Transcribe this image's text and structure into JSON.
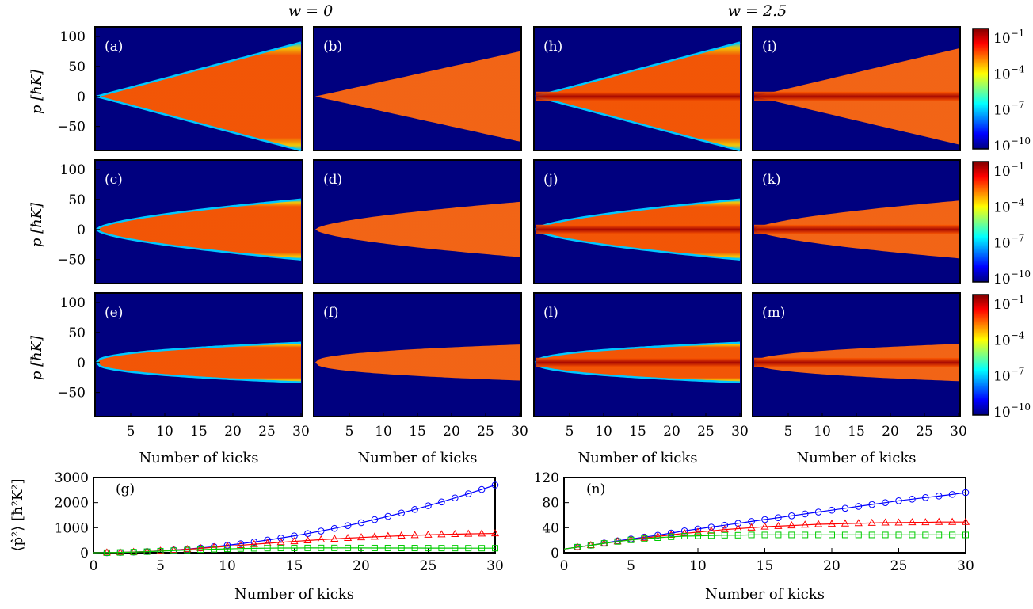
{
  "titles": {
    "left": "w = 0",
    "right": "w = 2.5"
  },
  "heatmap_ylabel": "p [ħK]",
  "heatmap_xlabel": "Number of kicks",
  "heatmap_yticks": [
    "100",
    "50",
    "0",
    "−50"
  ],
  "heatmap_xticks": [
    "5",
    "10",
    "15",
    "20",
    "25",
    "30"
  ],
  "colorbar": {
    "ticks": [
      {
        "base": "10",
        "exp": "−1"
      },
      {
        "base": "10",
        "exp": "−4"
      },
      {
        "base": "10",
        "exp": "−7"
      },
      {
        "base": "10",
        "exp": "−10"
      }
    ],
    "colors": [
      "#00007f",
      "#0000ff",
      "#0080ff",
      "#00ffff",
      "#80ff80",
      "#ffff00",
      "#ff8000",
      "#ff0000",
      "#7f0000"
    ]
  },
  "colors": {
    "background": "#00007f",
    "fringe_outer": "#00c8ff",
    "fringe_mid": "#ffd000",
    "body": "#ff5a00",
    "body_flat": "#ff6a10",
    "center": "#a00000"
  },
  "heatmap_panels": [
    {
      "label": "(a)",
      "row": 0,
      "col": 0,
      "p_edge_at_30": 90,
      "shape": "linear",
      "style": "fringed",
      "center_line": false
    },
    {
      "label": "(b)",
      "row": 0,
      "col": 1,
      "p_edge_at_30": 75,
      "shape": "linear",
      "style": "flat",
      "center_line": false
    },
    {
      "label": "(h)",
      "row": 0,
      "col": 2,
      "p_edge_at_30": 90,
      "shape": "linear",
      "style": "fringed",
      "center_line": true
    },
    {
      "label": "(i)",
      "row": 0,
      "col": 3,
      "p_edge_at_30": 80,
      "shape": "linear",
      "style": "flat",
      "center_line": true
    },
    {
      "label": "(c)",
      "row": 1,
      "col": 0,
      "p_edge_at_30": 50,
      "shape": "sublinear",
      "style": "fringed",
      "center_line": false
    },
    {
      "label": "(d)",
      "row": 1,
      "col": 1,
      "p_edge_at_30": 46,
      "shape": "sublinear",
      "style": "flat",
      "center_line": false
    },
    {
      "label": "(j)",
      "row": 1,
      "col": 2,
      "p_edge_at_30": 50,
      "shape": "sublinear",
      "style": "fringed",
      "center_line": true
    },
    {
      "label": "(k)",
      "row": 1,
      "col": 3,
      "p_edge_at_30": 48,
      "shape": "sublinear",
      "style": "flat",
      "center_line": true
    },
    {
      "label": "(e)",
      "row": 2,
      "col": 0,
      "p_edge_at_30": 33,
      "shape": "saturating",
      "style": "fringed",
      "center_line": false
    },
    {
      "label": "(f)",
      "row": 2,
      "col": 1,
      "p_edge_at_30": 30,
      "shape": "saturating",
      "style": "flat",
      "center_line": false
    },
    {
      "label": "(l)",
      "row": 2,
      "col": 2,
      "p_edge_at_30": 33,
      "shape": "saturating",
      "style": "fringed",
      "center_line": true
    },
    {
      "label": "(m)",
      "row": 2,
      "col": 3,
      "p_edge_at_30": 31,
      "shape": "saturating",
      "style": "flat",
      "center_line": true
    }
  ],
  "chart_data": [
    {
      "type": "line",
      "label": "(g)",
      "xlabel": "Number of kicks",
      "ylabel": "⟨p̂²⟩ [ħ²K²]",
      "xlim": [
        0,
        30
      ],
      "ylim": [
        0,
        3000
      ],
      "xticks": [
        "0",
        "5",
        "10",
        "15",
        "20",
        "25",
        "30"
      ],
      "yticks": [
        "0",
        "1000",
        "2000",
        "3000"
      ],
      "x": [
        0,
        1,
        2,
        3,
        4,
        5,
        6,
        7,
        8,
        9,
        10,
        11,
        12,
        13,
        14,
        15,
        16,
        17,
        18,
        19,
        20,
        21,
        22,
        23,
        24,
        25,
        26,
        27,
        28,
        29,
        30
      ],
      "series": [
        {
          "marker": "circle",
          "color": "#0000ff",
          "values": [
            0,
            3,
            12,
            27,
            48,
            75,
            108,
            147,
            192,
            243,
            300,
            363,
            432,
            507,
            588,
            675,
            768,
            867,
            972,
            1083,
            1200,
            1323,
            1452,
            1587,
            1728,
            1875,
            2028,
            2187,
            2352,
            2523,
            2700
          ]
        },
        {
          "marker": "triangle",
          "color": "#ff0000",
          "values": [
            0,
            3,
            12,
            27,
            48,
            74,
            105,
            140,
            178,
            218,
            259,
            300,
            340,
            380,
            418,
            455,
            490,
            523,
            554,
            583,
            610,
            635,
            658,
            679,
            698,
            715,
            730,
            743,
            754,
            763,
            770
          ]
        },
        {
          "marker": "square",
          "color": "#00cc00",
          "values": [
            0,
            3,
            12,
            26,
            44,
            64,
            85,
            105,
            124,
            141,
            155,
            167,
            176,
            183,
            188,
            191,
            193,
            194,
            194,
            193,
            192,
            191,
            190,
            189,
            188,
            187,
            186,
            185,
            184,
            183,
            182
          ]
        }
      ]
    },
    {
      "type": "line",
      "label": "(n)",
      "xlabel": "Number of kicks",
      "xlim": [
        0,
        30
      ],
      "ylim": [
        0,
        120
      ],
      "xticks": [
        "0",
        "5",
        "10",
        "15",
        "20",
        "25",
        "30"
      ],
      "yticks": [
        "0",
        "40",
        "80",
        "120"
      ],
      "x": [
        0,
        1,
        2,
        3,
        4,
        5,
        6,
        7,
        8,
        9,
        10,
        11,
        12,
        13,
        14,
        15,
        16,
        17,
        18,
        19,
        20,
        21,
        22,
        23,
        24,
        25,
        26,
        27,
        28,
        29,
        30
      ],
      "series": [
        {
          "marker": "circle",
          "color": "#0000ff",
          "values": [
            6,
            9,
            12,
            15.5,
            19,
            22,
            25,
            28,
            31.5,
            35,
            38,
            41,
            44,
            47,
            50,
            53,
            56,
            59,
            62,
            65,
            68,
            71,
            74,
            77,
            80,
            83,
            85.5,
            88,
            90.5,
            93,
            96
          ]
        },
        {
          "marker": "triangle",
          "color": "#ff0000",
          "values": [
            6,
            9,
            12,
            15,
            18,
            21,
            23.5,
            26,
            28.5,
            31,
            33,
            35,
            37,
            38.5,
            40,
            41.5,
            42.5,
            43.5,
            44.5,
            45.5,
            46,
            46.5,
            47,
            47.5,
            48,
            48,
            48.5,
            48.5,
            49,
            49,
            49
          ]
        },
        {
          "marker": "square",
          "color": "#00cc00",
          "values": [
            6,
            9,
            12,
            15,
            18,
            20.5,
            22.5,
            24,
            25.5,
            26.5,
            27,
            27.5,
            28,
            28,
            28.5,
            28.5,
            28.5,
            28.5,
            28.5,
            28.5,
            28.5,
            28.5,
            28.5,
            28.5,
            28.5,
            28.5,
            28.5,
            28.5,
            28.5,
            28.5,
            28.5
          ]
        }
      ]
    }
  ]
}
